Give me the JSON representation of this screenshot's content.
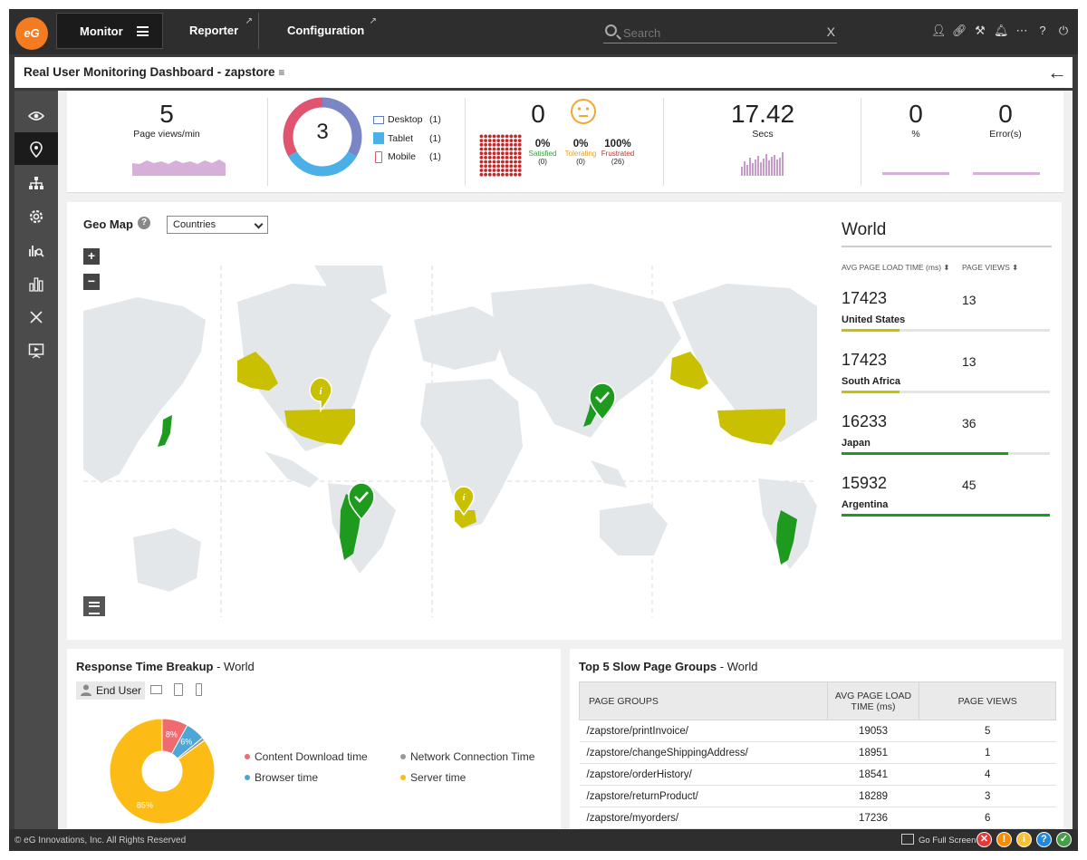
{
  "topbar": {
    "logo": "eG",
    "tabs": [
      {
        "label": "Monitor"
      },
      {
        "label": "Reporter"
      },
      {
        "label": "Configuration"
      }
    ],
    "search_placeholder": "Search",
    "clear_label": "X"
  },
  "title": "Real User Monitoring Dashboard - zapstore",
  "kpi": {
    "page_views": {
      "value": "5",
      "label": "Page views/min"
    },
    "devices": {
      "total": "3",
      "items": [
        {
          "label": "Desktop",
          "count": "(1)"
        },
        {
          "label": "Tablet",
          "count": "(1)"
        },
        {
          "label": "Mobile",
          "count": "(1)"
        }
      ]
    },
    "apdex": {
      "value": "0",
      "satisfied": {
        "pct": "0%",
        "label": "Satisfied",
        "count": "(0)"
      },
      "tolerating": {
        "pct": "0%",
        "label": "Tolerating",
        "count": "(0)"
      },
      "frustrated": {
        "pct": "100%",
        "label": "Frustrated",
        "count": "(26)"
      }
    },
    "response_time": {
      "value": "17.42",
      "label": "Secs"
    },
    "errors": {
      "pct_value": "0",
      "pct_label": "%",
      "err_value": "0",
      "err_label": "Error(s)"
    }
  },
  "geo": {
    "title": "Geo Map",
    "select_value": "Countries",
    "zoom_in": "+",
    "zoom_out": "−",
    "world": {
      "title": "World",
      "col_load": "AVG PAGE LOAD TIME (ms)",
      "col_views": "PAGE VIEWS",
      "rows": [
        {
          "value": "17423",
          "views": "13",
          "country": "United States",
          "level": 0.28,
          "color": "#c8c000"
        },
        {
          "value": "17423",
          "views": "13",
          "country": "South Africa",
          "level": 0.28,
          "color": "#c8c000"
        },
        {
          "value": "16233",
          "views": "36",
          "country": "Japan",
          "level": 0.8,
          "color": "#1e9a1e"
        },
        {
          "value": "15932",
          "views": "45",
          "country": "Argentina",
          "level": 1.0,
          "color": "#1e9a1e"
        }
      ]
    }
  },
  "rtb": {
    "title": "Response Time Breakup",
    "scope": "World",
    "end_user": "End User",
    "chart_data": {
      "type": "pie",
      "categories": [
        "Content Download time",
        "Browser time",
        "Network Connection Time",
        "Server time"
      ],
      "values": [
        8,
        6,
        1,
        85
      ],
      "labels": [
        "8%",
        "6%",
        "",
        "85%"
      ],
      "colors": [
        "#f06b70",
        "#4da6d6",
        "#999999",
        "#fdbb15"
      ]
    }
  },
  "slow": {
    "title": "Top 5 Slow Page Groups",
    "scope": "World",
    "columns": [
      "PAGE GROUPS",
      "AVG PAGE LOAD TIME (ms)",
      "PAGE VIEWS"
    ],
    "rows": [
      {
        "page": "/zapstore/printInvoice/",
        "load": "19053",
        "views": "5"
      },
      {
        "page": "/zapstore/changeShippingAddress/",
        "load": "18951",
        "views": "1"
      },
      {
        "page": "/zapstore/orderHistory/",
        "load": "18541",
        "views": "4"
      },
      {
        "page": "/zapstore/returnProduct/",
        "load": "18289",
        "views": "3"
      },
      {
        "page": "/zapstore/myorders/",
        "load": "17236",
        "views": "6"
      }
    ]
  },
  "footer": {
    "copyright": "© eG Innovations, Inc. All Rights Reserved",
    "fullscreen": "Go Full Screen"
  }
}
